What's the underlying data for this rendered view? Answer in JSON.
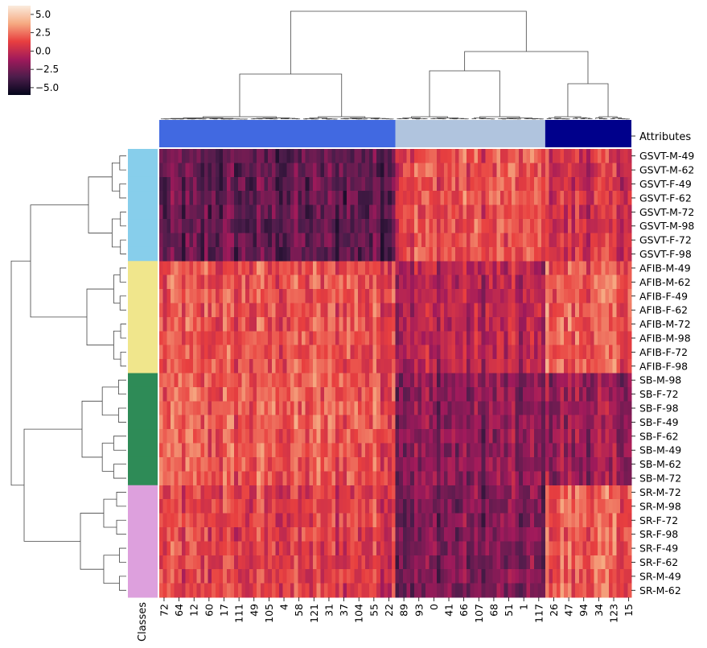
{
  "chart_data": {
    "type": "heatmap",
    "title": "",
    "colorbar": {
      "ticks": [
        5.0,
        2.5,
        0.0,
        -2.5,
        -5.0
      ],
      "tick_labels": [
        "5.0",
        "2.5",
        "0.0",
        "−2.5",
        "−5.0"
      ],
      "range": [
        -6,
        6.2
      ],
      "cmap": "rocket"
    },
    "rows": [
      "GSVT-M-49",
      "GSVT-M-62",
      "GSVT-F-49",
      "GSVT-F-62",
      "GSVT-M-72",
      "GSVT-M-98",
      "GSVT-F-72",
      "GSVT-F-98",
      "AFIB-M-49",
      "AFIB-M-62",
      "AFIB-F-49",
      "AFIB-F-62",
      "AFIB-M-72",
      "AFIB-M-98",
      "AFIB-F-72",
      "AFIB-F-98",
      "SB-M-98",
      "SB-F-72",
      "SB-F-98",
      "SB-F-49",
      "SB-F-62",
      "SB-M-49",
      "SB-M-62",
      "SB-M-72",
      "SR-M-72",
      "SR-M-98",
      "SR-F-72",
      "SR-F-98",
      "SR-F-49",
      "SR-F-62",
      "SR-M-49",
      "SR-M-62"
    ],
    "row_classes": [
      "GSVT",
      "GSVT",
      "GSVT",
      "GSVT",
      "GSVT",
      "GSVT",
      "GSVT",
      "GSVT",
      "AFIB",
      "AFIB",
      "AFIB",
      "AFIB",
      "AFIB",
      "AFIB",
      "AFIB",
      "AFIB",
      "SB",
      "SB",
      "SB",
      "SB",
      "SB",
      "SB",
      "SB",
      "SB",
      "SR",
      "SR",
      "SR",
      "SR",
      "SR",
      "SR",
      "SR",
      "SR"
    ],
    "class_colors": {
      "GSVT": "#87ceeb",
      "AFIB": "#f0e68c",
      "SB": "#2e8b57",
      "SR": "#dda0dd"
    },
    "row_side_label": "Classes",
    "col_side_label": "Attributes",
    "n_columns": 126,
    "col_groups": [
      {
        "count": 63,
        "color": "#4169e1"
      },
      {
        "count": 40,
        "color": "#b0c4de"
      },
      {
        "count": 23,
        "color": "#00008b"
      }
    ],
    "x_tick_labels": [
      "72",
      "64",
      "12",
      "60",
      "17",
      "111",
      "49",
      "105",
      "4",
      "58",
      "121",
      "31",
      "37",
      "104",
      "55",
      "22",
      "89",
      "93",
      "0",
      "41",
      "66",
      "107",
      "68",
      "51",
      "1",
      "117",
      "26",
      "47",
      "94",
      "34",
      "123",
      "15"
    ],
    "block_means": {
      "GSVT": [
        -3.0,
        1.5,
        0.5
      ],
      "AFIB": [
        1.6,
        -0.4,
        2.0
      ],
      "SB": [
        1.8,
        -1.8,
        -1.4
      ],
      "SR": [
        1.0,
        -2.2,
        1.9
      ]
    }
  }
}
